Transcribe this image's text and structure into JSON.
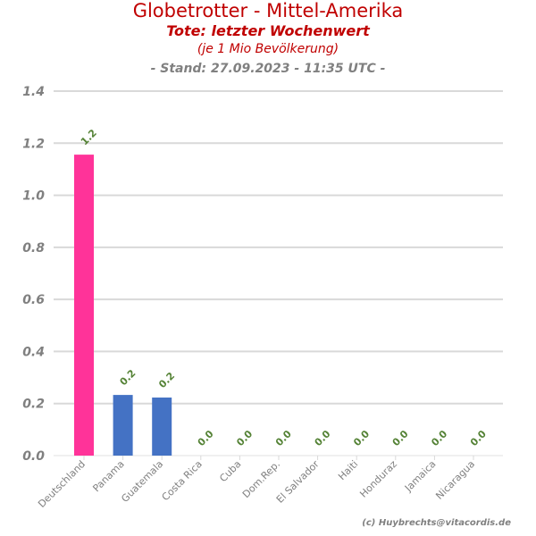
{
  "chart_data": {
    "type": "bar",
    "title": "Globetrotter - Mittel-Amerika",
    "subtitle": "Tote: letzter Wochenwert",
    "subtitle2": "(je 1 Mio Bevölkerung)",
    "subtitle3": "- Stand: 27.09.2023 - 11:35 UTC -",
    "categories": [
      "Deutschland",
      "Panama",
      "Guatemala",
      "Costa Rica",
      "Cuba",
      "Dom.Rep.",
      "El Salvador",
      "Haiti",
      "Honduraz",
      "Jamaica",
      "Nicaragua"
    ],
    "values": [
      1.156,
      0.233,
      0.223,
      0,
      0,
      0,
      0,
      0,
      0,
      0,
      0
    ],
    "data_labels": [
      "1.2",
      "0.2",
      "0.2",
      "0.0",
      "0.0",
      "0.0",
      "0.0",
      "0.0",
      "0.0",
      "0.0",
      "0.0"
    ],
    "bar_colors": [
      "#ff3399",
      "#4472c4",
      "#4472c4",
      "#4472c4",
      "#4472c4",
      "#4472c4",
      "#4472c4",
      "#4472c4",
      "#4472c4",
      "#4472c4",
      "#4472c4"
    ],
    "yticks": [
      "0.0",
      "0.2",
      "0.4",
      "0.6",
      "0.8",
      "1.0",
      "1.2",
      "1.4"
    ],
    "ylim": [
      0,
      1.4
    ],
    "xlabel": "",
    "ylabel": "",
    "grid": true,
    "label_color": "#548235"
  },
  "credit": "(c) Huybrechts@vitacordis.de"
}
